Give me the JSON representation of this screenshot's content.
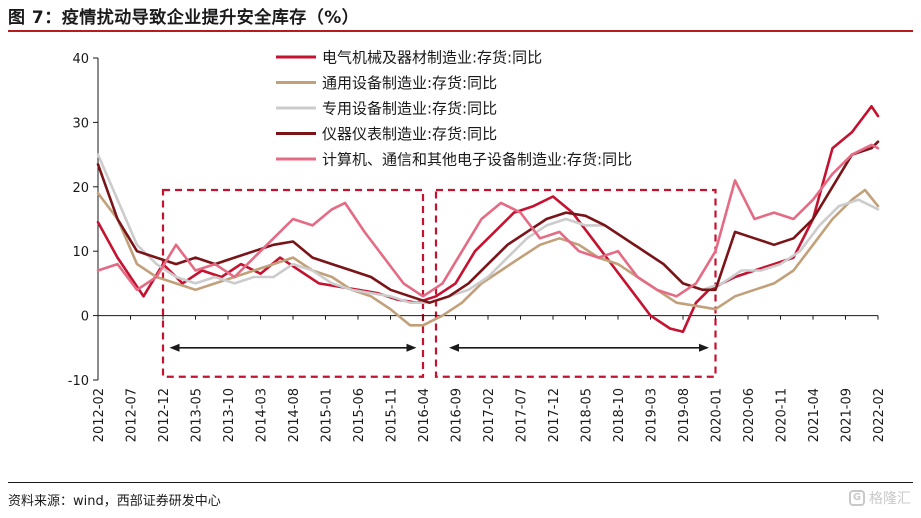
{
  "title": "图 7：疫情扰动导致企业提升安全库存（%）",
  "source": "资料来源：wind，西部证券研发中心",
  "watermark": "格隆汇",
  "chart_data": {
    "type": "line",
    "ylim": [
      -10,
      40
    ],
    "yticks": [
      -10,
      0,
      10,
      20,
      30,
      40
    ],
    "x_tick_labels": [
      "2012-02",
      "2012-07",
      "2012-12",
      "2013-05",
      "2013-10",
      "2014-03",
      "2014-08",
      "2015-01",
      "2015-06",
      "2015-11",
      "2016-04",
      "2016-09",
      "2017-02",
      "2017-07",
      "2017-12",
      "2018-05",
      "2018-10",
      "2019-03",
      "2019-08",
      "2020-01",
      "2020-06",
      "2020-11",
      "2021-04",
      "2021-09",
      "2022-02"
    ],
    "x_start": "2012-02",
    "x_end": "2022-02",
    "grid": false,
    "legend_position": "top",
    "series": [
      {
        "name": "电气机械及器材制造业:存货:同比",
        "color": "#c41230",
        "keypoints": [
          [
            "2012-02",
            14.5
          ],
          [
            "2012-05",
            9
          ],
          [
            "2012-09",
            3
          ],
          [
            "2012-12",
            8
          ],
          [
            "2013-03",
            5
          ],
          [
            "2013-06",
            7
          ],
          [
            "2013-09",
            6
          ],
          [
            "2013-12",
            8
          ],
          [
            "2014-03",
            6.5
          ],
          [
            "2014-06",
            9
          ],
          [
            "2014-09",
            7
          ],
          [
            "2014-12",
            5
          ],
          [
            "2015-03",
            4.5
          ],
          [
            "2015-06",
            4
          ],
          [
            "2015-09",
            3.5
          ],
          [
            "2015-12",
            2.5
          ],
          [
            "2016-03",
            2
          ],
          [
            "2016-06",
            3
          ],
          [
            "2016-09",
            5
          ],
          [
            "2016-12",
            10
          ],
          [
            "2017-03",
            13
          ],
          [
            "2017-06",
            16
          ],
          [
            "2017-09",
            17
          ],
          [
            "2017-12",
            18.5
          ],
          [
            "2018-03",
            16
          ],
          [
            "2018-06",
            12
          ],
          [
            "2018-09",
            8
          ],
          [
            "2018-12",
            4
          ],
          [
            "2019-03",
            0
          ],
          [
            "2019-06",
            -2
          ],
          [
            "2019-08",
            -2.5
          ],
          [
            "2019-10",
            2
          ],
          [
            "2019-12",
            4
          ],
          [
            "2020-01",
            4.5
          ],
          [
            "2020-04",
            6
          ],
          [
            "2020-07",
            7
          ],
          [
            "2020-10",
            8
          ],
          [
            "2021-01",
            9
          ],
          [
            "2021-04",
            15
          ],
          [
            "2021-07",
            26
          ],
          [
            "2021-10",
            28.5
          ],
          [
            "2022-01",
            32.5
          ],
          [
            "2022-02",
            31
          ]
        ]
      },
      {
        "name": "通用设备制造业:存货:同比",
        "color": "#c2a07a",
        "keypoints": [
          [
            "2012-02",
            19
          ],
          [
            "2012-05",
            15
          ],
          [
            "2012-08",
            8
          ],
          [
            "2012-11",
            6
          ],
          [
            "2013-02",
            5
          ],
          [
            "2013-05",
            4
          ],
          [
            "2013-08",
            5
          ],
          [
            "2013-11",
            6
          ],
          [
            "2014-02",
            7
          ],
          [
            "2014-05",
            8
          ],
          [
            "2014-08",
            9
          ],
          [
            "2014-11",
            7
          ],
          [
            "2015-02",
            6
          ],
          [
            "2015-05",
            4
          ],
          [
            "2015-08",
            3
          ],
          [
            "2015-11",
            1
          ],
          [
            "2016-02",
            -1.5
          ],
          [
            "2016-04",
            -1.5
          ],
          [
            "2016-07",
            0
          ],
          [
            "2016-10",
            2
          ],
          [
            "2017-01",
            5
          ],
          [
            "2017-04",
            7
          ],
          [
            "2017-07",
            9
          ],
          [
            "2017-10",
            11
          ],
          [
            "2018-01",
            12
          ],
          [
            "2018-04",
            11
          ],
          [
            "2018-07",
            9
          ],
          [
            "2018-10",
            8
          ],
          [
            "2019-01",
            6
          ],
          [
            "2019-04",
            4
          ],
          [
            "2019-07",
            2
          ],
          [
            "2019-10",
            1.5
          ],
          [
            "2020-01",
            1
          ],
          [
            "2020-04",
            3
          ],
          [
            "2020-07",
            4
          ],
          [
            "2020-10",
            5
          ],
          [
            "2021-01",
            7
          ],
          [
            "2021-04",
            11
          ],
          [
            "2021-07",
            15
          ],
          [
            "2021-10",
            18
          ],
          [
            "2021-12",
            19.5
          ],
          [
            "2022-02",
            17
          ]
        ]
      },
      {
        "name": "专用设备制造业:存货:同比",
        "color": "#cccccc",
        "keypoints": [
          [
            "2012-02",
            25
          ],
          [
            "2012-05",
            18
          ],
          [
            "2012-08",
            11
          ],
          [
            "2012-11",
            8
          ],
          [
            "2013-02",
            6
          ],
          [
            "2013-05",
            5
          ],
          [
            "2013-08",
            6
          ],
          [
            "2013-11",
            5
          ],
          [
            "2014-02",
            6
          ],
          [
            "2014-05",
            6
          ],
          [
            "2014-08",
            8
          ],
          [
            "2014-11",
            7
          ],
          [
            "2015-02",
            5
          ],
          [
            "2015-05",
            4
          ],
          [
            "2015-08",
            3.5
          ],
          [
            "2015-11",
            3
          ],
          [
            "2016-02",
            2
          ],
          [
            "2016-05",
            2
          ],
          [
            "2016-08",
            3
          ],
          [
            "2016-11",
            4
          ],
          [
            "2017-02",
            6
          ],
          [
            "2017-05",
            9
          ],
          [
            "2017-08",
            12
          ],
          [
            "2017-11",
            14
          ],
          [
            "2018-02",
            15
          ],
          [
            "2018-05",
            14
          ],
          [
            "2018-08",
            14
          ],
          [
            "2018-11",
            12
          ],
          [
            "2019-02",
            10
          ],
          [
            "2019-05",
            8
          ],
          [
            "2019-08",
            5
          ],
          [
            "2019-11",
            4
          ],
          [
            "2020-02",
            5
          ],
          [
            "2020-05",
            7
          ],
          [
            "2020-08",
            7
          ],
          [
            "2020-11",
            8
          ],
          [
            "2021-02",
            10
          ],
          [
            "2021-05",
            14
          ],
          [
            "2021-08",
            17
          ],
          [
            "2021-11",
            18
          ],
          [
            "2022-02",
            16.5
          ]
        ]
      },
      {
        "name": "仪器仪表制造业:存货:同比",
        "color": "#7a1418",
        "keypoints": [
          [
            "2012-02",
            23.5
          ],
          [
            "2012-05",
            15
          ],
          [
            "2012-08",
            10
          ],
          [
            "2012-11",
            9
          ],
          [
            "2013-02",
            8
          ],
          [
            "2013-05",
            9
          ],
          [
            "2013-08",
            8
          ],
          [
            "2013-11",
            9
          ],
          [
            "2014-02",
            10
          ],
          [
            "2014-05",
            11
          ],
          [
            "2014-08",
            11.5
          ],
          [
            "2014-11",
            9
          ],
          [
            "2015-02",
            8
          ],
          [
            "2015-05",
            7
          ],
          [
            "2015-08",
            6
          ],
          [
            "2015-11",
            4
          ],
          [
            "2016-02",
            3
          ],
          [
            "2016-05",
            2
          ],
          [
            "2016-08",
            3
          ],
          [
            "2016-11",
            5
          ],
          [
            "2017-02",
            8
          ],
          [
            "2017-05",
            11
          ],
          [
            "2017-08",
            13
          ],
          [
            "2017-11",
            15
          ],
          [
            "2018-02",
            16
          ],
          [
            "2018-05",
            15.5
          ],
          [
            "2018-08",
            14
          ],
          [
            "2018-11",
            12
          ],
          [
            "2019-02",
            10
          ],
          [
            "2019-05",
            8
          ],
          [
            "2019-08",
            5
          ],
          [
            "2019-11",
            4
          ],
          [
            "2020-01",
            4
          ],
          [
            "2020-04",
            13
          ],
          [
            "2020-07",
            12
          ],
          [
            "2020-10",
            11
          ],
          [
            "2021-01",
            12
          ],
          [
            "2021-04",
            15
          ],
          [
            "2021-07",
            20
          ],
          [
            "2021-10",
            25
          ],
          [
            "2022-01",
            26
          ],
          [
            "2022-02",
            27
          ]
        ]
      },
      {
        "name": "计算机、通信和其他电子设备制造业:存货:同比",
        "color": "#e56b85",
        "keypoints": [
          [
            "2012-02",
            7
          ],
          [
            "2012-05",
            8
          ],
          [
            "2012-08",
            4
          ],
          [
            "2012-11",
            6
          ],
          [
            "2013-02",
            11
          ],
          [
            "2013-05",
            7
          ],
          [
            "2013-08",
            8
          ],
          [
            "2013-11",
            6
          ],
          [
            "2014-02",
            9
          ],
          [
            "2014-05",
            12
          ],
          [
            "2014-08",
            15
          ],
          [
            "2014-11",
            14
          ],
          [
            "2015-02",
            16.5
          ],
          [
            "2015-04",
            17.5
          ],
          [
            "2015-07",
            13
          ],
          [
            "2015-10",
            9
          ],
          [
            "2016-01",
            5
          ],
          [
            "2016-04",
            3
          ],
          [
            "2016-07",
            5
          ],
          [
            "2016-10",
            10
          ],
          [
            "2017-01",
            15
          ],
          [
            "2017-04",
            17.5
          ],
          [
            "2017-07",
            16
          ],
          [
            "2017-10",
            12
          ],
          [
            "2018-01",
            13
          ],
          [
            "2018-04",
            10
          ],
          [
            "2018-07",
            9
          ],
          [
            "2018-10",
            10
          ],
          [
            "2019-01",
            6
          ],
          [
            "2019-04",
            4
          ],
          [
            "2019-07",
            3
          ],
          [
            "2019-10",
            5
          ],
          [
            "2020-01",
            10
          ],
          [
            "2020-04",
            21
          ],
          [
            "2020-07",
            15
          ],
          [
            "2020-10",
            16
          ],
          [
            "2021-01",
            15
          ],
          [
            "2021-04",
            18
          ],
          [
            "2021-07",
            22
          ],
          [
            "2021-10",
            25
          ],
          [
            "2022-01",
            26.5
          ],
          [
            "2022-02",
            26
          ]
        ]
      }
    ],
    "annotations": [
      {
        "type": "dashed-box",
        "from": "2012-12",
        "to": "2016-04",
        "ymin": -9.5,
        "ymax": 19.5,
        "color": "#c41230"
      },
      {
        "type": "dashed-box",
        "from": "2016-06",
        "to": "2020-01",
        "ymin": -9.5,
        "ymax": 19.5,
        "color": "#c41230"
      },
      {
        "type": "double-arrow",
        "from": "2013-01",
        "to": "2016-03",
        "y": -5
      },
      {
        "type": "double-arrow",
        "from": "2016-08",
        "to": "2019-12",
        "y": -5
      }
    ]
  }
}
